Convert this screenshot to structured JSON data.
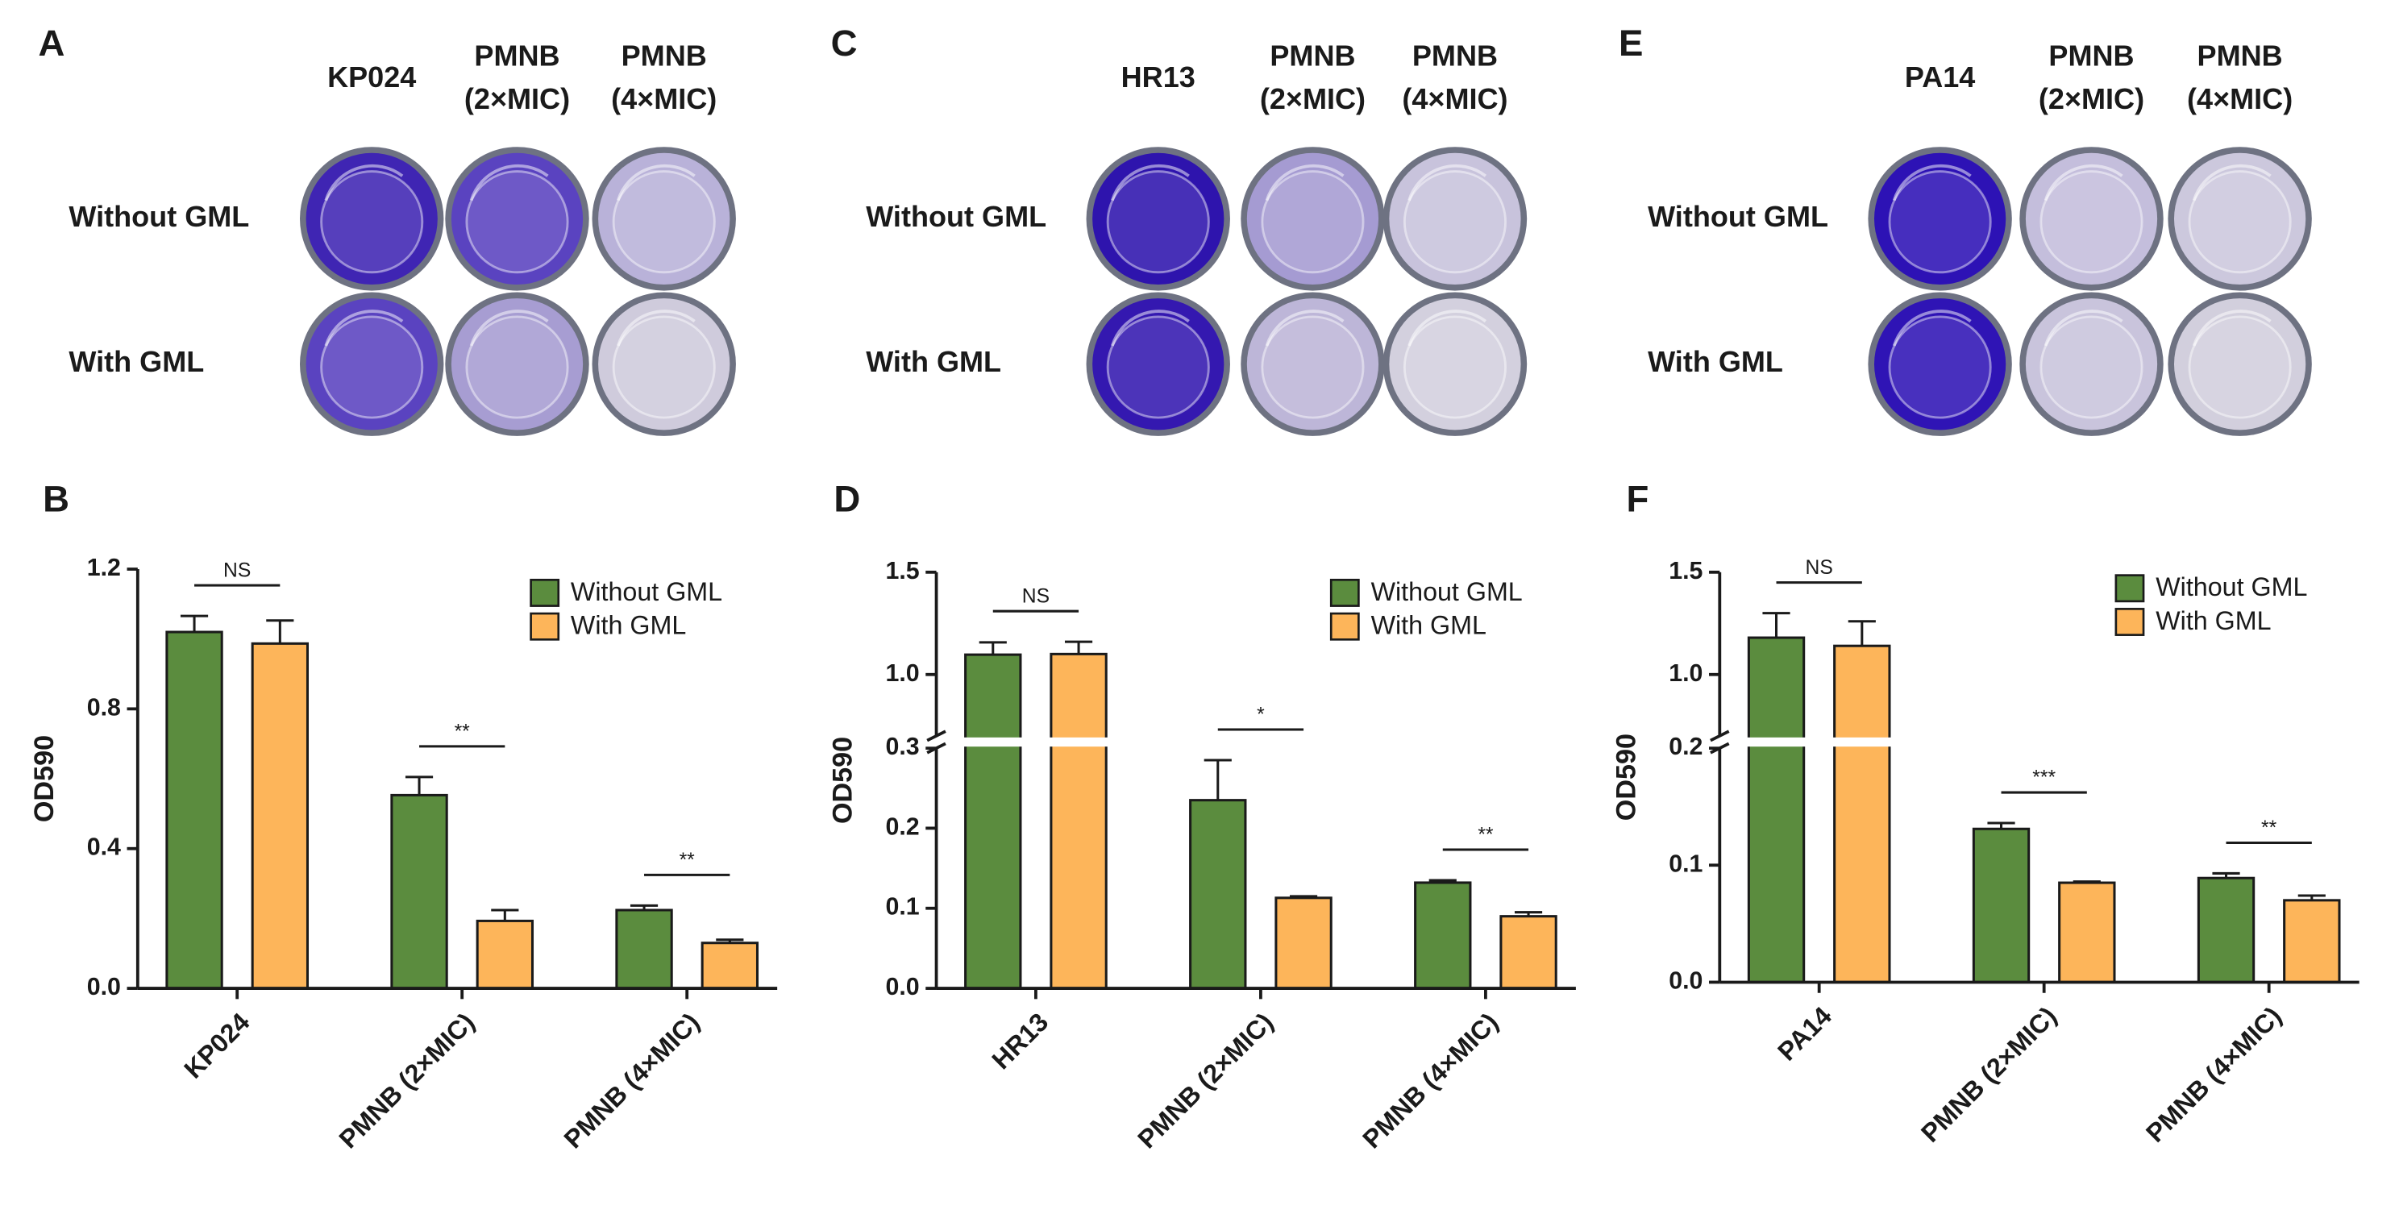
{
  "well_panels": [
    {
      "panel": "A",
      "columns": [
        [
          "KP024"
        ],
        [
          "PMNB",
          "(2×MIC)"
        ],
        [
          "PMNB",
          "(4×MIC)"
        ]
      ],
      "rows": [
        "Without GML",
        "With GML"
      ]
    },
    {
      "panel": "C",
      "columns": [
        [
          "HR13"
        ],
        [
          "PMNB",
          "(2×MIC)"
        ],
        [
          "PMNB",
          "(4×MIC)"
        ]
      ],
      "rows": [
        "Without GML",
        "With GML"
      ]
    },
    {
      "panel": "E",
      "columns": [
        [
          "PA14"
        ],
        [
          "PMNB",
          "(2×MIC)"
        ],
        [
          "PMNB",
          "(4×MIC)"
        ]
      ],
      "rows": [
        "Without GML",
        "With GML"
      ]
    }
  ],
  "chart_data": [
    {
      "type": "bar",
      "panel": "B",
      "y_label": "OD590",
      "categories": [
        "KP024",
        "PMNB (2×MIC)",
        "PMNB (4×MIC)"
      ],
      "series": [
        {
          "name": "Without GML",
          "color": "#5b8c3e",
          "values": [
            1.02,
            0.553,
            0.224
          ],
          "errors": [
            0.046,
            0.052,
            0.013
          ]
        },
        {
          "name": "With GML",
          "color": "#fdb55a",
          "values": [
            0.987,
            0.193,
            0.13
          ],
          "errors": [
            0.066,
            0.031,
            0.009
          ]
        }
      ],
      "significance": [
        "NS",
        "**",
        "**"
      ],
      "ylim": [
        0,
        1.2
      ],
      "yticks": [
        {
          "value": 0,
          "label": "0.0"
        },
        0.4,
        0.8,
        1.2
      ],
      "legend": "upper right"
    },
    {
      "type": "bar",
      "panel": "D",
      "y_label": "OD590",
      "categories": [
        "HR13",
        "PMNB (2×MIC)",
        "PMNB (4×MIC)"
      ],
      "series": [
        {
          "name": "Without GML",
          "color": "#5b8c3e",
          "values": [
            1.097,
            0.235,
            0.132
          ],
          "errors": [
            0.06,
            0.05,
            0.003
          ]
        },
        {
          "name": "With GML",
          "color": "#fdb55a",
          "values": [
            1.1,
            0.113,
            0.09
          ],
          "errors": [
            0.06,
            0.002,
            0.005
          ]
        }
      ],
      "significance": [
        "NS",
        "*",
        "**"
      ],
      "ylim": [
        0,
        1.5
      ],
      "axis_break": [
        0.3,
        0.7
      ],
      "yticks": [
        {
          "value": 0,
          "label": "0.0"
        },
        0.1,
        0.2,
        0.3,
        {
          "value": 1,
          "label": "1.0"
        },
        1.5
      ],
      "legend": "upper right"
    },
    {
      "type": "bar",
      "panel": "F",
      "y_label": "OD590",
      "categories": [
        "PA14",
        "PMNB (2×MIC)",
        "PMNB (4×MIC)"
      ],
      "series": [
        {
          "name": "Without GML",
          "color": "#5b8c3e",
          "values": [
            1.18,
            0.131,
            0.089
          ],
          "errors": [
            0.12,
            0.005,
            0.004
          ]
        },
        {
          "name": "With GML",
          "color": "#fdb55a",
          "values": [
            1.14,
            0.085,
            0.07
          ],
          "errors": [
            0.12,
            0.001,
            0.004
          ]
        }
      ],
      "significance": [
        "NS",
        "***",
        "**"
      ],
      "ylim": [
        0,
        1.5
      ],
      "axis_break": [
        0.2,
        0.7
      ],
      "yticks": [
        {
          "value": 0,
          "label": "0.0"
        },
        0.1,
        0.2,
        {
          "value": 1,
          "label": "1.0"
        },
        1.5
      ],
      "legend": "upper right"
    }
  ]
}
